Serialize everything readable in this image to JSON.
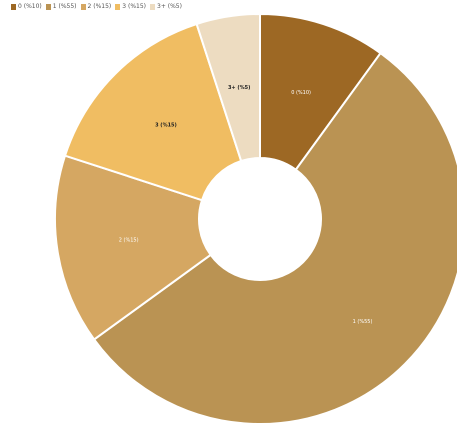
{
  "chart_data": {
    "type": "pie",
    "variant": "donut",
    "categories": [
      "0 (%10)",
      "1 (%55)",
      "2 (%15)",
      "3 (%15)",
      "3+ (%5)"
    ],
    "values": [
      10,
      55,
      15,
      15,
      5
    ],
    "colors": [
      "#9d6824",
      "#ba9353",
      "#d5a762",
      "#f0bd62",
      "#eddcc1"
    ],
    "label_colors": [
      "#ffffff",
      "#ffffff",
      "#ffffff",
      "#222222",
      "#222222"
    ],
    "legend": {
      "position": "top-left",
      "items": [
        "0 (%10)",
        "1 (%55)",
        "2 (%15)",
        "3 (%15)",
        "3+ (%5)"
      ]
    },
    "title": ""
  }
}
